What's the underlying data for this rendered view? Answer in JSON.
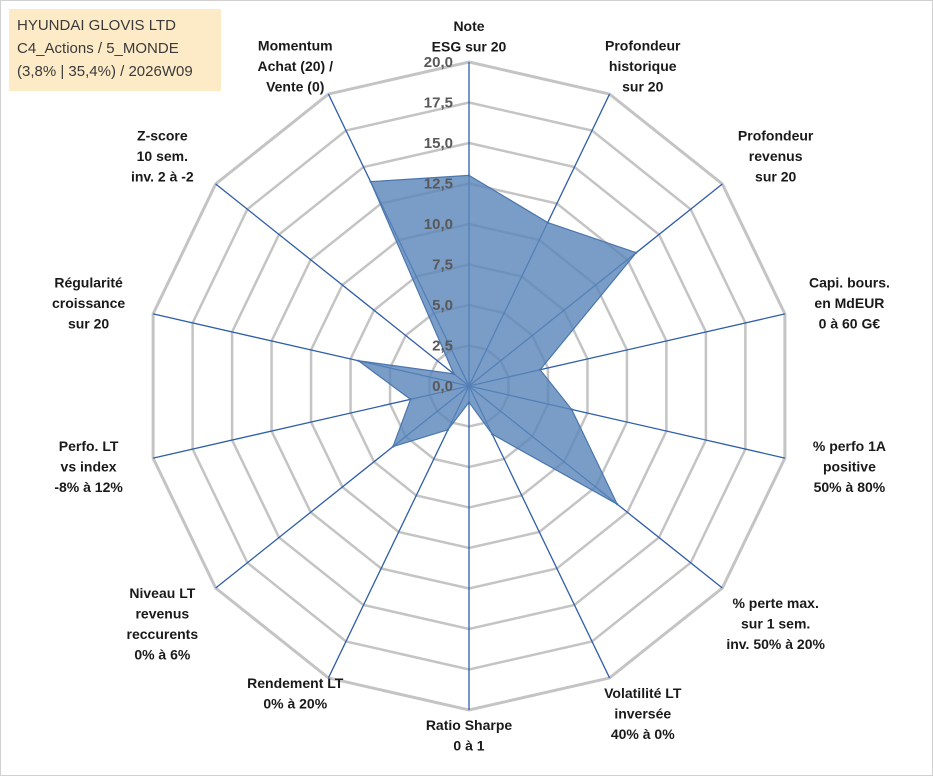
{
  "header": {
    "line1": "HYUNDAI GLOVIS LTD",
    "line2": "C4_Actions / 5_MONDE",
    "line3": "(3,8% | 35,4%) / 2026W09"
  },
  "chart_data": {
    "type": "radar",
    "rmin": 0,
    "rmax": 20,
    "ticks": [
      "0,0",
      "2,5",
      "5,0",
      "7,5",
      "10,0",
      "12,5",
      "15,0",
      "17,5",
      "20,0"
    ],
    "tick_values": [
      0,
      2.5,
      5,
      7.5,
      10,
      12.5,
      15,
      17.5,
      20
    ],
    "series_color": "#5b87bb",
    "axis_color": "#2f5da8",
    "grid_color": "#c4c4c4",
    "axes": [
      {
        "label": [
          "Note",
          "ESG sur 20"
        ],
        "value": 13.0
      },
      {
        "label": [
          "Profondeur",
          "historique",
          "sur 20"
        ],
        "value": 11.2
      },
      {
        "label": [
          "Profondeur",
          "revenus",
          "sur 20"
        ],
        "value": 13.2
      },
      {
        "label": [
          "Capi. bours.",
          "en MdEUR",
          "0 à 60 G€"
        ],
        "value": 4.5
      },
      {
        "label": [
          "% perfo 1A",
          "positive",
          "50% à 80%"
        ],
        "value": 6.5
      },
      {
        "label": [
          "% perte max.",
          "sur 1 sem.",
          "inv. 50% à 20%"
        ],
        "value": 11.7
      },
      {
        "label": [
          "Volatilité LT",
          "inversée",
          "40% à 0%"
        ],
        "value": 3.3
      },
      {
        "label": [
          "Ratio Sharpe",
          "0 à 1"
        ],
        "value": 1.0
      },
      {
        "label": [
          "Rendement LT",
          "0% à 20%"
        ],
        "value": 3.0
      },
      {
        "label": [
          "Niveau LT",
          "revenus",
          "reccurents",
          "0% à 6%"
        ],
        "value": 6.0
      },
      {
        "label": [
          "Perfo. LT",
          "vs index",
          "-8% à 12%"
        ],
        "value": 3.7
      },
      {
        "label": [
          "Régularité",
          "croissance",
          "sur 20"
        ],
        "value": 7.0
      },
      {
        "label": [
          "Z-score",
          "10 sem.",
          "inv. 2 à -2"
        ],
        "value": 1.2
      },
      {
        "label": [
          "Momentum",
          "Achat (20) /",
          "Vente (0)"
        ],
        "value": 14.0
      }
    ]
  }
}
